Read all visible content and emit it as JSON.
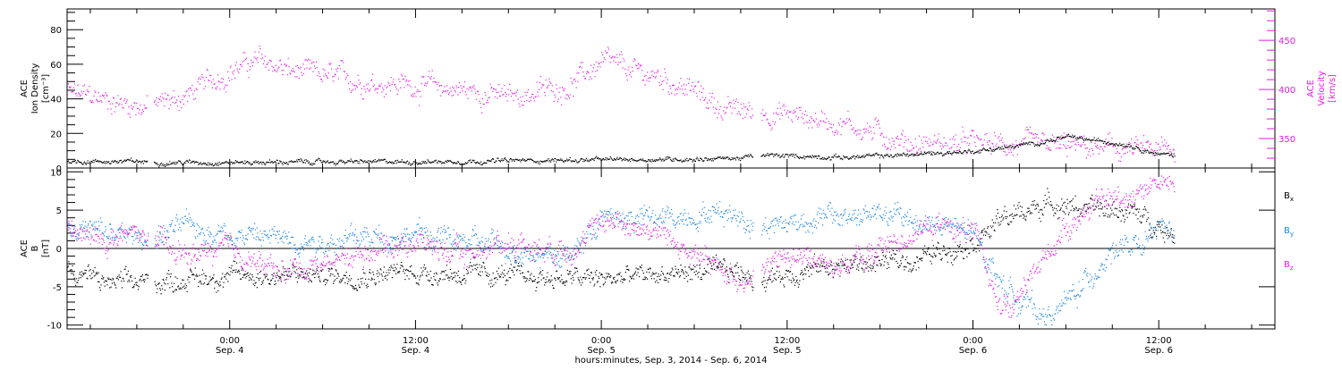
{
  "colors": {
    "ink": "#000000",
    "magenta": "#e31ee3",
    "blue": "#1e87e1"
  },
  "time_axis": {
    "tick_labels": [
      {
        "time": "0:00",
        "date": "Sep. 4"
      },
      {
        "time": "12:00",
        "date": "Sep. 4"
      },
      {
        "time": "0:00",
        "date": "Sep. 5"
      },
      {
        "time": "12:00",
        "date": "Sep. 5"
      },
      {
        "time": "0:00",
        "date": "Sep. 6"
      },
      {
        "time": "12:00",
        "date": "Sep. 6"
      }
    ],
    "title": "hours:minutes, Sep.  3, 2014 - Sep.  6, 2014"
  },
  "chart_data": [
    {
      "type": "scatter",
      "title": "",
      "x_range_hours": [
        -10.5,
        67.5
      ],
      "ylabel_left": [
        "ACE",
        "Ion Density",
        "[cm⁻³]"
      ],
      "ylabel_right": [
        "ACE",
        "Velocity",
        "[km/s]"
      ],
      "ylim_left": [
        0,
        92
      ],
      "ylim_right": [
        320,
        482
      ],
      "left_ticks": [
        0,
        20,
        40,
        60,
        80
      ],
      "right_ticks": [
        350,
        400,
        450
      ],
      "grid": false,
      "data_gaps_hours": [
        [
          -5.3,
          -4.9
        ],
        [
          33.8,
          34.3
        ]
      ],
      "data_end_hours": [
        -10.5,
        61.0
      ],
      "series": [
        {
          "name": "Ion Density",
          "axis": "left",
          "color": "#000000",
          "anchors": [
            [
              -10.5,
              4
            ],
            [
              -6,
              4
            ],
            [
              -5,
              3.5
            ],
            [
              0,
              3.5
            ],
            [
              6,
              3.8
            ],
            [
              12,
              3.8
            ],
            [
              18,
              4.5
            ],
            [
              24,
              5
            ],
            [
              30,
              5.5
            ],
            [
              33,
              6
            ],
            [
              34.3,
              7.5
            ],
            [
              40,
              6.5
            ],
            [
              44,
              8
            ],
            [
              48,
              10
            ],
            [
              51,
              13
            ],
            [
              54,
              18
            ],
            [
              58,
              14
            ],
            [
              60,
              8
            ],
            [
              61,
              8
            ]
          ]
        },
        {
          "name": "Velocity",
          "axis": "right",
          "color": "#e31ee3",
          "anchors": [
            [
              -10.5,
              397
            ],
            [
              -8,
              390
            ],
            [
              -6,
              384
            ],
            [
              -5,
              384
            ],
            [
              -3,
              392
            ],
            [
              0,
              420
            ],
            [
              2,
              430
            ],
            [
              4,
              418
            ],
            [
              8,
              410
            ],
            [
              12,
              405
            ],
            [
              16,
              398
            ],
            [
              18,
              392
            ],
            [
              22,
              405
            ],
            [
              24,
              428
            ],
            [
              26,
              418
            ],
            [
              28,
              412
            ],
            [
              30,
              398
            ],
            [
              32,
              380
            ],
            [
              36,
              375
            ],
            [
              38,
              370
            ],
            [
              40,
              365
            ],
            [
              44,
              345
            ],
            [
              48,
              345
            ],
            [
              52,
              342
            ],
            [
              56,
              340
            ],
            [
              60,
              338
            ],
            [
              61,
              338
            ]
          ]
        }
      ]
    },
    {
      "type": "scatter",
      "title": "",
      "x_range_hours": [
        -10.5,
        67.5
      ],
      "ylabel_left": [
        "ACE",
        "B",
        "[nT]"
      ],
      "ylim": [
        -10.5,
        10.5
      ],
      "left_ticks": [
        -10,
        -5,
        0,
        5,
        10
      ],
      "zero_line": true,
      "grid": false,
      "series": [
        {
          "name": "Bx",
          "legend_main": "B",
          "legend_sub": "x",
          "color": "#000000",
          "anchors": [
            [
              -10.5,
              -2.5
            ],
            [
              -8,
              -4.5
            ],
            [
              -6,
              -4.5
            ],
            [
              -3,
              -4
            ],
            [
              0,
              -3.5
            ],
            [
              6,
              -3.5
            ],
            [
              12,
              -3
            ],
            [
              18,
              -3.5
            ],
            [
              24,
              -4
            ],
            [
              30,
              -3
            ],
            [
              33,
              -3
            ],
            [
              34.3,
              -4
            ],
            [
              38,
              -2.5
            ],
            [
              44,
              -1.5
            ],
            [
              48,
              1
            ],
            [
              50,
              4
            ],
            [
              53,
              6
            ],
            [
              56,
              5
            ],
            [
              58,
              5
            ],
            [
              61,
              2
            ]
          ]
        },
        {
          "name": "By",
          "legend_main": "B",
          "legend_sub": "y",
          "color": "#1e87e1",
          "anchors": [
            [
              -10.5,
              3
            ],
            [
              -8,
              2
            ],
            [
              -6,
              1.5
            ],
            [
              -5,
              1.5
            ],
            [
              -3,
              3
            ],
            [
              0,
              2
            ],
            [
              6,
              1
            ],
            [
              12,
              2
            ],
            [
              18,
              0
            ],
            [
              22,
              -1
            ],
            [
              24,
              4
            ],
            [
              28,
              4
            ],
            [
              32,
              5
            ],
            [
              34.3,
              3
            ],
            [
              38,
              4
            ],
            [
              42,
              4.5
            ],
            [
              46,
              3
            ],
            [
              48,
              2
            ],
            [
              50,
              -5
            ],
            [
              52,
              -8
            ],
            [
              53,
              -9
            ],
            [
              55,
              -5
            ],
            [
              57,
              0
            ],
            [
              59,
              0
            ],
            [
              60,
              3
            ],
            [
              61,
              2
            ]
          ]
        },
        {
          "name": "Bz",
          "legend_main": "B",
          "legend_sub": "z",
          "color": "#e31ee3",
          "anchors": [
            [
              -10.5,
              2
            ],
            [
              -8,
              1
            ],
            [
              -6,
              2
            ],
            [
              -5,
              1
            ],
            [
              -3,
              -1
            ],
            [
              0,
              0
            ],
            [
              3,
              -3
            ],
            [
              6,
              -2
            ],
            [
              9,
              0
            ],
            [
              12,
              1
            ],
            [
              15,
              -1
            ],
            [
              18,
              1
            ],
            [
              21,
              0
            ],
            [
              23,
              1
            ],
            [
              24,
              4
            ],
            [
              28,
              2
            ],
            [
              30,
              -1
            ],
            [
              33,
              -4
            ],
            [
              34.3,
              -3
            ],
            [
              36,
              -1
            ],
            [
              40,
              -2
            ],
            [
              44,
              2
            ],
            [
              46,
              3
            ],
            [
              48,
              2
            ],
            [
              49.5,
              -6
            ],
            [
              50.5,
              -8
            ],
            [
              52,
              -3
            ],
            [
              54,
              3
            ],
            [
              56,
              6
            ],
            [
              58,
              7
            ],
            [
              60,
              9
            ],
            [
              61,
              8
            ]
          ]
        }
      ]
    }
  ]
}
